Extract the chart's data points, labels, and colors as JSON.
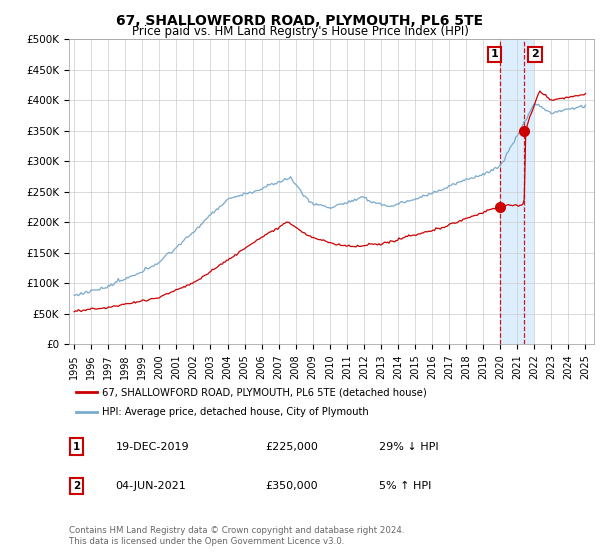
{
  "title": "67, SHALLOWFORD ROAD, PLYMOUTH, PL6 5TE",
  "subtitle": "Price paid vs. HM Land Registry's House Price Index (HPI)",
  "ylabel_ticks": [
    "£0",
    "£50K",
    "£100K",
    "£150K",
    "£200K",
    "£250K",
    "£300K",
    "£350K",
    "£400K",
    "£450K",
    "£500K"
  ],
  "ytick_values": [
    0,
    50000,
    100000,
    150000,
    200000,
    250000,
    300000,
    350000,
    400000,
    450000,
    500000
  ],
  "xlim_start": 1994.7,
  "xlim_end": 2025.5,
  "ylim": [
    0,
    500000
  ],
  "transaction1": {
    "date": "19-DEC-2019",
    "price": 225000,
    "pct": "29% ↓ HPI",
    "label": "1",
    "year": 2019.97
  },
  "transaction2": {
    "date": "04-JUN-2021",
    "price": 350000,
    "pct": "5% ↑ HPI",
    "label": "2",
    "year": 2021.42
  },
  "legend_line1": "67, SHALLOWFORD ROAD, PLYMOUTH, PL6 5TE (detached house)",
  "legend_line2": "HPI: Average price, detached house, City of Plymouth",
  "footer": "Contains HM Land Registry data © Crown copyright and database right 2024.\nThis data is licensed under the Open Government Licence v3.0.",
  "line_color_red": "#cc0000",
  "line_color_blue": "#7aaacc",
  "highlight_color": "#ddeeff",
  "box_color_red": "#cc0000",
  "xtick_years": [
    "1995",
    "1996",
    "1997",
    "1998",
    "1999",
    "2000",
    "2001",
    "2002",
    "2003",
    "2004",
    "2005",
    "2006",
    "2007",
    "2008",
    "2009",
    "2010",
    "2011",
    "2012",
    "2013",
    "2014",
    "2015",
    "2016",
    "2017",
    "2018",
    "2019",
    "2020",
    "2021",
    "2022",
    "2023",
    "2024",
    "2025"
  ]
}
